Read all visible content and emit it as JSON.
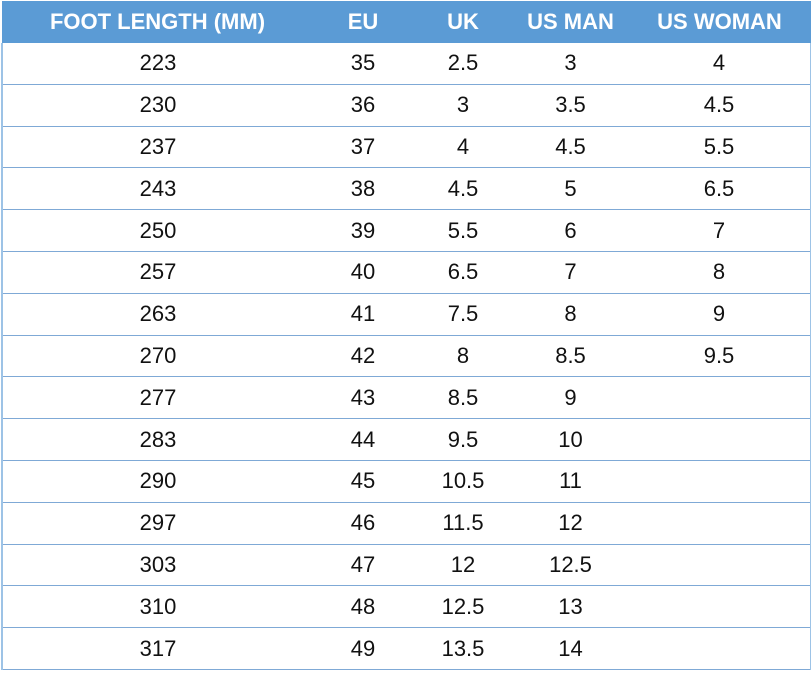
{
  "table": {
    "headers": [
      "FOOT LENGTH (MM)",
      "EU",
      "UK",
      "US MAN",
      "US WOMAN"
    ],
    "rows": [
      [
        "223",
        "35",
        "2.5",
        "3",
        "4"
      ],
      [
        "230",
        "36",
        "3",
        "3.5",
        "4.5"
      ],
      [
        "237",
        "37",
        "4",
        "4.5",
        "5.5"
      ],
      [
        "243",
        "38",
        "4.5",
        "5",
        "6.5"
      ],
      [
        "250",
        "39",
        "5.5",
        "6",
        "7"
      ],
      [
        "257",
        "40",
        "6.5",
        "7",
        "8"
      ],
      [
        "263",
        "41",
        "7.5",
        "8",
        "9"
      ],
      [
        "270",
        "42",
        "8",
        "8.5",
        "9.5"
      ],
      [
        "277",
        "43",
        "8.5",
        "9",
        ""
      ],
      [
        "283",
        "44",
        "9.5",
        "10",
        ""
      ],
      [
        "290",
        "45",
        "10.5",
        "11",
        ""
      ],
      [
        "297",
        "46",
        "11.5",
        "12",
        ""
      ],
      [
        "303",
        "47",
        "12",
        "12.5",
        ""
      ],
      [
        "310",
        "48",
        "12.5",
        "13",
        ""
      ],
      [
        "317",
        "49",
        "13.5",
        "14",
        ""
      ]
    ],
    "colors": {
      "header_bg": "#5b9bd5",
      "border": "#7fa9d6"
    }
  }
}
